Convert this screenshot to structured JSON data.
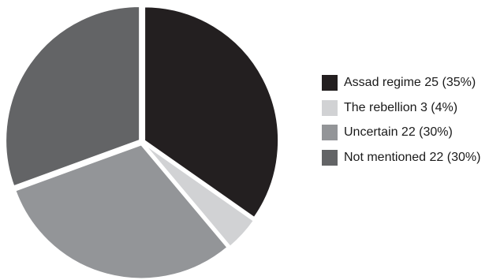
{
  "chart_data": {
    "type": "pie",
    "title": "",
    "legend_position": "right",
    "slices": [
      {
        "name": "Assad regime",
        "count": 25,
        "percent": 35,
        "label": "Assad regime 25 (35%)",
        "color": "#231f20"
      },
      {
        "name": "The rebellion",
        "count": 3,
        "percent": 4,
        "label": "The rebellion 3 (4%)",
        "color": "#d1d2d4"
      },
      {
        "name": "Uncertain",
        "count": 22,
        "percent": 30,
        "label": "Uncertain 22 (30%)",
        "color": "#939598"
      },
      {
        "name": "Not mentioned",
        "count": 22,
        "percent": 30,
        "label": "Not mentioned 22 (30%)",
        "color": "#636466"
      }
    ]
  }
}
